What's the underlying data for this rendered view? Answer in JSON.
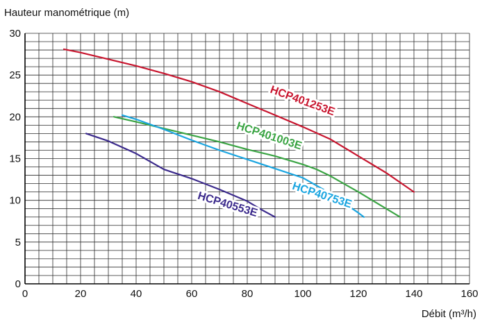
{
  "chart_data": {
    "type": "line",
    "ylabel": "Hauteur manométrique (m)",
    "xlabel": "Débit (m³/h)",
    "xlim": [
      0,
      160
    ],
    "ylim": [
      0,
      30
    ],
    "x_ticks": [
      0,
      20,
      40,
      60,
      80,
      100,
      120,
      140,
      160
    ],
    "y_ticks": [
      0,
      5,
      10,
      15,
      20,
      25,
      30
    ],
    "x_minor_step": 5,
    "y_minor_step": 1,
    "grid": true,
    "legend": "inline labels",
    "series": [
      {
        "name": "HCP401253E",
        "color": "#c8162f",
        "x": [
          14,
          20,
          30,
          40,
          50,
          60,
          70,
          80,
          90,
          100,
          110,
          120,
          130,
          140
        ],
        "y": [
          28.1,
          27.7,
          26.9,
          26.1,
          25.2,
          24.2,
          23.0,
          21.6,
          20.2,
          18.8,
          17.3,
          15.3,
          13.3,
          11.0
        ],
        "label_at": [
          100,
          22
        ]
      },
      {
        "name": "HCP401003E",
        "color": "#3aa443",
        "x": [
          32,
          40,
          50,
          60,
          70,
          80,
          90,
          100,
          105,
          110,
          120,
          130,
          135
        ],
        "y": [
          20.0,
          19.4,
          18.6,
          17.8,
          17.0,
          16.1,
          15.3,
          14.3,
          13.7,
          12.9,
          11.0,
          9.0,
          8.0
        ],
        "label_at": [
          88,
          17.8
        ]
      },
      {
        "name": "HCP40753E",
        "color": "#1aa5e0",
        "x": [
          35,
          40,
          50,
          60,
          70,
          80,
          90,
          100,
          110,
          120,
          122
        ],
        "y": [
          20.2,
          19.7,
          18.5,
          17.2,
          16.0,
          14.9,
          13.8,
          12.7,
          10.8,
          8.5,
          8.0
        ],
        "label_at": [
          107,
          10.7
        ]
      },
      {
        "name": "HCP40553E",
        "color": "#3b2a8c",
        "x": [
          22,
          30,
          40,
          50,
          60,
          70,
          80,
          85,
          90
        ],
        "y": [
          18.0,
          17.1,
          15.6,
          13.7,
          12.6,
          11.3,
          9.9,
          8.9,
          8.0
        ],
        "label_at": [
          73,
          9.6
        ]
      }
    ],
    "series_label_angles": [
      20,
      18,
      18,
      17
    ]
  }
}
